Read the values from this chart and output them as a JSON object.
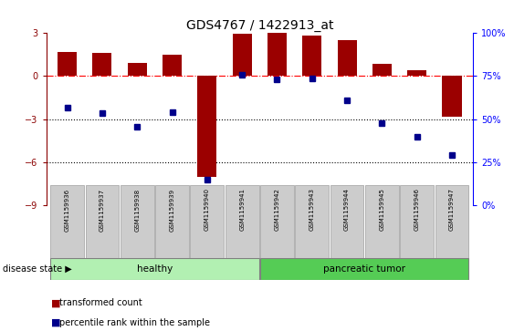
{
  "title": "GDS4767 / 1422913_at",
  "samples": [
    "GSM1159936",
    "GSM1159937",
    "GSM1159938",
    "GSM1159939",
    "GSM1159940",
    "GSM1159941",
    "GSM1159942",
    "GSM1159943",
    "GSM1159944",
    "GSM1159945",
    "GSM1159946",
    "GSM1159947"
  ],
  "bar_values": [
    1.7,
    1.6,
    0.9,
    1.5,
    -7.0,
    2.95,
    3.0,
    2.85,
    2.5,
    0.85,
    0.4,
    -2.8
  ],
  "blue_values": [
    -2.2,
    -2.6,
    -3.5,
    -2.5,
    -7.2,
    0.1,
    -0.2,
    -0.15,
    -1.7,
    -3.3,
    -4.2,
    -5.5
  ],
  "bar_color": "#9b0000",
  "blue_color": "#00008b",
  "right_axis_labels": [
    "0%",
    "25%",
    "50%",
    "75%",
    "100%"
  ],
  "right_axis_positions": [
    -9,
    -6,
    -3,
    0,
    3
  ],
  "ylim": [
    -9,
    3
  ],
  "yticks": [
    -9,
    -6,
    -3,
    0,
    3
  ],
  "hline_y": 0,
  "dotted_lines": [
    -3,
    -6
  ],
  "healthy_count": 6,
  "tumor_count": 6,
  "healthy_label": "healthy",
  "tumor_label": "pancreatic tumor",
  "group_label": "disease state",
  "legend_bar_label": "transformed count",
  "legend_blue_label": "percentile rank within the sample",
  "healthy_color": "#b2f0b2",
  "tumor_color": "#55cc55",
  "label_box_color": "#cccccc",
  "bar_width": 0.55
}
